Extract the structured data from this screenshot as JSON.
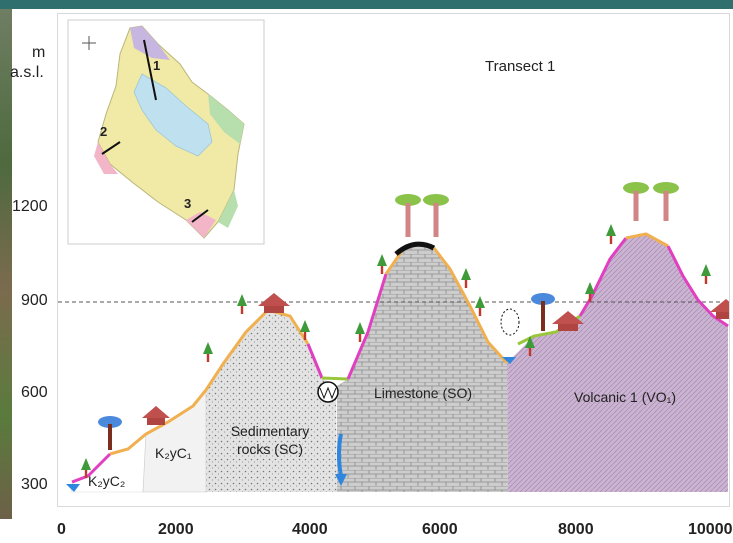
{
  "axis": {
    "y_unit_line1": "m",
    "y_unit_line2": "a.s.l.",
    "y_ticks": [
      "1200",
      "900",
      "600",
      "300"
    ],
    "x_ticks": [
      "0",
      "2000",
      "4000",
      "6000",
      "8000",
      "10000"
    ]
  },
  "title": "Transect 1",
  "rock_units": {
    "k2yc2": "K₂yC₂",
    "k2yc1": "K₂yC₁",
    "sedimentary_line1": "Sedimentary",
    "sedimentary_line2": "rocks (SC)",
    "limestone": "Limestone (SO)",
    "volcanic": "Volcanic 1 (VO₁)"
  },
  "inset_map": {
    "transect_numbers": [
      "1",
      "2",
      "3"
    ]
  },
  "colors": {
    "sedimentary": "#d9d9d9",
    "limestone": "#c8c8c8",
    "volcanic": "#c9b0cf",
    "k2yc1": "#f2f2f2",
    "surface_orange": "#f0b050",
    "surface_pink": "#e040c0",
    "water": "#2e86de",
    "reference_line": "#555555"
  },
  "icons": [
    "tree-icon",
    "hut-icon",
    "mushroom-tree-icon",
    "cave-icon",
    "stream-icon",
    "compass-icon"
  ]
}
